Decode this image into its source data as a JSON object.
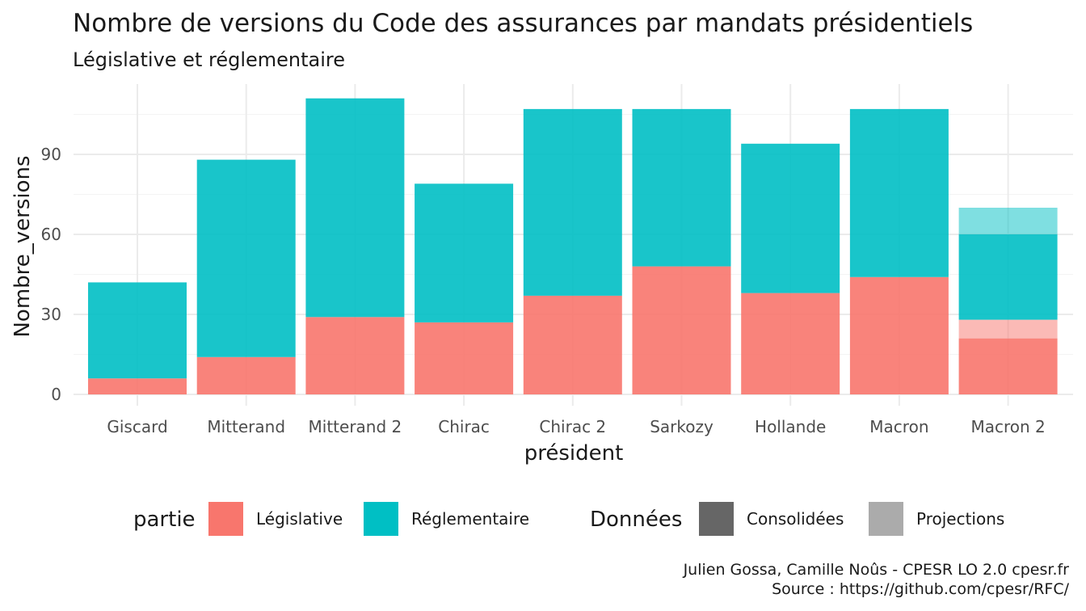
{
  "chart_data": {
    "type": "bar",
    "stacked": true,
    "title": "Nombre de versions du Code des assurances par mandats présidentiels",
    "subtitle": "Législative et réglementaire",
    "xlabel": "président",
    "ylabel": "Nombre_versions",
    "ylim": [
      0,
      114
    ],
    "yticks": [
      0,
      30,
      60,
      90
    ],
    "grid": true,
    "categories": [
      "Giscard",
      "Mitterand",
      "Mitterand 2",
      "Chirac",
      "Chirac 2",
      "Sarkozy",
      "Hollande",
      "Macron",
      "Macron 2"
    ],
    "series": [
      {
        "name": "Législative",
        "data": "Consolidées",
        "values": [
          6,
          14,
          29,
          27,
          37,
          48,
          38,
          44,
          21
        ]
      },
      {
        "name": "Législative",
        "data": "Projections",
        "values": [
          0,
          0,
          0,
          0,
          0,
          0,
          0,
          0,
          7
        ]
      },
      {
        "name": "Réglementaire",
        "data": "Consolidées",
        "values": [
          36,
          74,
          82,
          52,
          70,
          59,
          56,
          63,
          32
        ]
      },
      {
        "name": "Réglementaire",
        "data": "Projections",
        "values": [
          0,
          0,
          0,
          0,
          0,
          0,
          0,
          0,
          10
        ]
      }
    ],
    "legend": {
      "placement": "bottom",
      "partie_title": "partie",
      "partie": [
        {
          "label": "Législative",
          "color": "#F8766D"
        },
        {
          "label": "Réglementaire",
          "color": "#00BFC4"
        }
      ],
      "donnees_title": "Données",
      "donnees": [
        {
          "label": "Consolidées",
          "color": "#666666"
        },
        {
          "label": "Projections",
          "color": "#ABABAB"
        }
      ]
    },
    "caption_line1": "Julien Gossa, Camille Noûs - CPESR LO 2.0 cpesr.fr",
    "caption_line2": "Source : https://github.com/cpesr/RFC/"
  }
}
